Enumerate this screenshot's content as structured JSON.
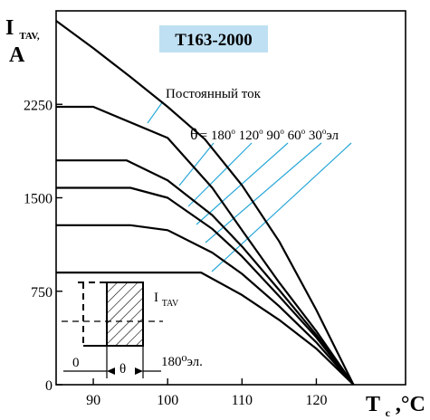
{
  "chart_data": {
    "type": "line",
    "title": "T163-2000",
    "ylabel_main": "I",
    "ylabel_sub": "TAV,",
    "ylabel_unit": "A",
    "xlabel_main": "T",
    "xlabel_sub": "c",
    "xlabel_unit": ",°C",
    "xlim": [
      85,
      132
    ],
    "ylim": [
      0,
      3000
    ],
    "xticks": [
      90,
      100,
      110,
      120
    ],
    "yticks": [
      0,
      750,
      1500,
      2250
    ],
    "grid": false,
    "dc_label": "Постоянный ток",
    "theta_label": "θ = 180° 120° 90° 60° 30°эл",
    "theta_symbol": "θ",
    "theta_values": [
      "180",
      "120",
      "90",
      "60",
      "30"
    ],
    "theta_unit": "эл",
    "series": [
      {
        "values": [
          [
            85,
            2920
          ],
          [
            90,
            2700
          ],
          [
            95,
            2470
          ],
          [
            100,
            2230
          ],
          [
            105,
            1970
          ],
          [
            110,
            1600
          ],
          [
            115,
            1150
          ],
          [
            120,
            600
          ],
          [
            125,
            0
          ]
        ]
      },
      {
        "values": [
          [
            85,
            2230
          ],
          [
            90,
            2230
          ],
          [
            100,
            1980
          ],
          [
            106,
            1580
          ],
          [
            110,
            1240
          ],
          [
            115,
            820
          ],
          [
            120,
            430
          ],
          [
            125,
            0
          ]
        ]
      },
      {
        "values": [
          [
            85,
            1800
          ],
          [
            94.5,
            1800
          ],
          [
            100,
            1640
          ],
          [
            106,
            1360
          ],
          [
            110,
            1110
          ],
          [
            115,
            760
          ],
          [
            120,
            400
          ],
          [
            125,
            0
          ]
        ]
      },
      {
        "values": [
          [
            85,
            1580
          ],
          [
            95,
            1580
          ],
          [
            100,
            1500
          ],
          [
            106,
            1250
          ],
          [
            110,
            1030
          ],
          [
            115,
            710
          ],
          [
            120,
            380
          ],
          [
            125,
            0
          ]
        ]
      },
      {
        "values": [
          [
            85,
            1280
          ],
          [
            95,
            1280
          ],
          [
            100,
            1240
          ],
          [
            106,
            1060
          ],
          [
            110,
            890
          ],
          [
            115,
            630
          ],
          [
            120,
            340
          ],
          [
            125,
            0
          ]
        ]
      },
      {
        "values": [
          [
            85,
            900
          ],
          [
            104.5,
            900
          ],
          [
            110,
            720
          ],
          [
            115,
            520
          ],
          [
            120,
            290
          ],
          [
            125,
            0
          ]
        ]
      }
    ],
    "inset": {
      "current_label": "I",
      "current_sub": "TAV",
      "zero_label": "0",
      "theta_label": "θ",
      "period_label": "180⁰эл."
    }
  }
}
